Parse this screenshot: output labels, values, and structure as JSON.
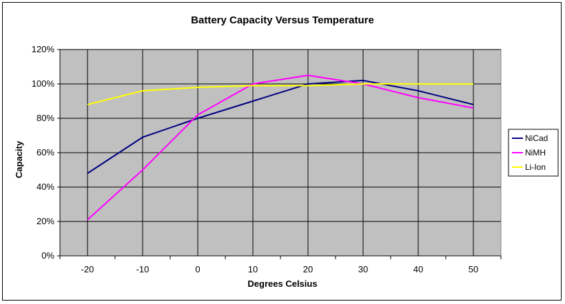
{
  "chart_data": {
    "type": "line",
    "title": "Battery Capacity Versus Temperature",
    "xlabel": "Degrees Celsius",
    "ylabel": "Capacity",
    "categories": [
      "-20",
      "-10",
      "0",
      "10",
      "20",
      "30",
      "40",
      "50"
    ],
    "ylim": [
      0,
      120
    ],
    "ytick_labels": [
      "0%",
      "20%",
      "40%",
      "60%",
      "80%",
      "100%",
      "120%"
    ],
    "grid": true,
    "legend_position": "right",
    "plot_background": "#C0C0C0",
    "series": [
      {
        "name": "NiCad",
        "color": "#000080",
        "values": [
          48,
          69,
          80,
          90,
          100,
          102,
          96,
          88
        ]
      },
      {
        "name": "NiMH",
        "color": "#FF00FF",
        "values": [
          21,
          50,
          82,
          100,
          105,
          100,
          92,
          86
        ]
      },
      {
        "name": "Li-Ion",
        "color": "#FFFF00",
        "values": [
          88,
          96,
          98,
          99,
          99,
          100,
          100,
          100
        ]
      }
    ]
  }
}
